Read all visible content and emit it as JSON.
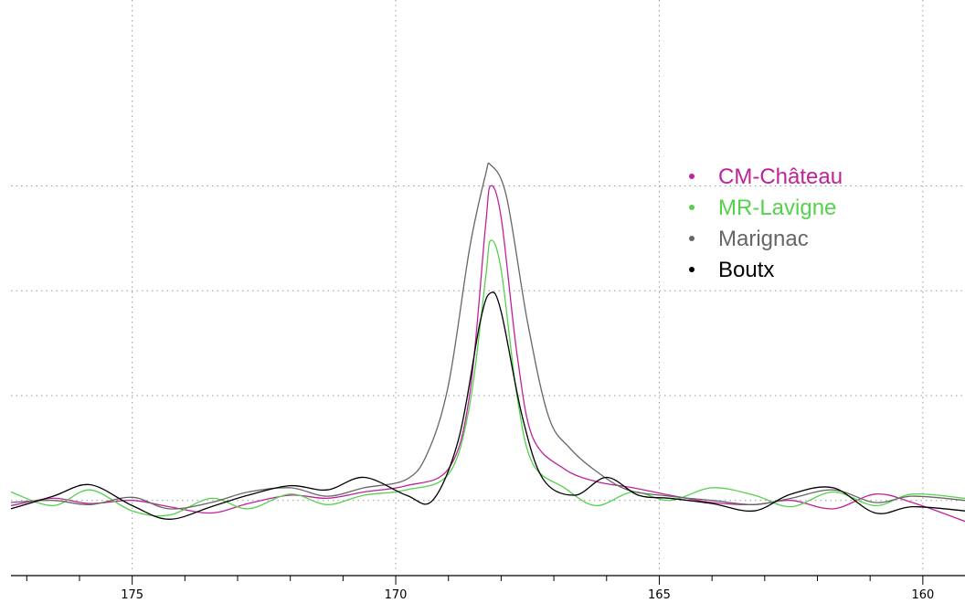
{
  "chart_data": {
    "type": "line",
    "title": "",
    "xlabel": "",
    "ylabel": "",
    "x_reversed": true,
    "xlim": [
      177.3,
      159.2
    ],
    "ylim": [
      -0.7,
      4.6
    ],
    "grid": true,
    "x_ticks": [
      175,
      170,
      165,
      160
    ],
    "x_tick_labels": [
      "175",
      "170",
      "165",
      "160"
    ],
    "y_gridlines": [
      0,
      1,
      2,
      3
    ],
    "legend_position": "upper-right",
    "series": [
      {
        "name": "CM-Château",
        "color": "#c0229a",
        "peak_center": 168.2,
        "peak_height": 3.0,
        "points": [
          [
            177.3,
            -0.05
          ],
          [
            176.5,
            0.02
          ],
          [
            175.8,
            -0.03
          ],
          [
            175.0,
            0.0
          ],
          [
            174.3,
            -0.06
          ],
          [
            173.5,
            -0.12
          ],
          [
            172.8,
            -0.03
          ],
          [
            172.0,
            0.05
          ],
          [
            171.3,
            0.02
          ],
          [
            170.6,
            0.08
          ],
          [
            169.8,
            0.14
          ],
          [
            169.0,
            0.3
          ],
          [
            168.6,
            1.0
          ],
          [
            168.3,
            2.6
          ],
          [
            168.2,
            3.0
          ],
          [
            168.0,
            2.7
          ],
          [
            167.7,
            1.4
          ],
          [
            167.4,
            0.6
          ],
          [
            166.8,
            0.3
          ],
          [
            166.2,
            0.18
          ],
          [
            165.5,
            0.12
          ],
          [
            164.8,
            0.05
          ],
          [
            164.0,
            -0.02
          ],
          [
            163.2,
            -0.04
          ],
          [
            162.5,
            0.0
          ],
          [
            161.7,
            -0.08
          ],
          [
            160.9,
            0.06
          ],
          [
            160.2,
            -0.02
          ],
          [
            159.2,
            -0.2
          ]
        ]
      },
      {
        "name": "MR-Lavigne",
        "color": "#55d24b",
        "peak_center": 168.2,
        "peak_height": 2.48,
        "points": [
          [
            177.3,
            0.08
          ],
          [
            176.5,
            -0.05
          ],
          [
            175.8,
            0.1
          ],
          [
            175.0,
            -0.1
          ],
          [
            174.3,
            -0.14
          ],
          [
            173.5,
            0.02
          ],
          [
            172.8,
            -0.08
          ],
          [
            172.0,
            0.06
          ],
          [
            171.3,
            -0.04
          ],
          [
            170.6,
            0.05
          ],
          [
            169.8,
            0.1
          ],
          [
            169.0,
            0.25
          ],
          [
            168.6,
            0.9
          ],
          [
            168.3,
            2.1
          ],
          [
            168.2,
            2.48
          ],
          [
            168.0,
            2.2
          ],
          [
            167.7,
            1.0
          ],
          [
            167.4,
            0.35
          ],
          [
            166.8,
            0.12
          ],
          [
            166.2,
            -0.05
          ],
          [
            165.5,
            0.08
          ],
          [
            164.8,
            0.0
          ],
          [
            164.0,
            0.12
          ],
          [
            163.2,
            0.05
          ],
          [
            162.5,
            -0.06
          ],
          [
            161.7,
            0.08
          ],
          [
            160.9,
            -0.05
          ],
          [
            160.2,
            0.06
          ],
          [
            159.2,
            0.02
          ]
        ]
      },
      {
        "name": "Marignac",
        "color": "#666666",
        "peak_center": 168.2,
        "peak_height": 3.2,
        "points": [
          [
            177.3,
            -0.02
          ],
          [
            176.5,
            0.0
          ],
          [
            175.8,
            -0.04
          ],
          [
            175.0,
            0.03
          ],
          [
            174.3,
            -0.08
          ],
          [
            173.5,
            -0.02
          ],
          [
            172.8,
            0.08
          ],
          [
            172.0,
            0.12
          ],
          [
            171.3,
            0.04
          ],
          [
            170.6,
            0.12
          ],
          [
            169.8,
            0.2
          ],
          [
            169.4,
            0.45
          ],
          [
            169.0,
            1.1
          ],
          [
            168.6,
            2.4
          ],
          [
            168.3,
            3.1
          ],
          [
            168.2,
            3.2
          ],
          [
            167.9,
            2.9
          ],
          [
            167.5,
            1.7
          ],
          [
            167.1,
            0.8
          ],
          [
            166.7,
            0.5
          ],
          [
            166.2,
            0.28
          ],
          [
            165.6,
            0.1
          ],
          [
            164.8,
            0.04
          ],
          [
            164.0,
            0.0
          ],
          [
            163.2,
            -0.04
          ],
          [
            162.5,
            0.02
          ],
          [
            161.7,
            0.1
          ],
          [
            160.9,
            -0.02
          ],
          [
            160.2,
            0.04
          ],
          [
            159.2,
            0.0
          ]
        ]
      },
      {
        "name": "Boutx",
        "color": "#000000",
        "peak_center": 168.2,
        "peak_height": 1.98,
        "points": [
          [
            177.3,
            -0.08
          ],
          [
            176.5,
            0.04
          ],
          [
            175.8,
            0.15
          ],
          [
            175.0,
            -0.05
          ],
          [
            174.3,
            -0.18
          ],
          [
            173.5,
            -0.06
          ],
          [
            172.8,
            0.05
          ],
          [
            172.0,
            0.14
          ],
          [
            171.3,
            0.1
          ],
          [
            170.6,
            0.22
          ],
          [
            169.8,
            0.05
          ],
          [
            169.3,
            0.0
          ],
          [
            168.8,
            0.6
          ],
          [
            168.4,
            1.7
          ],
          [
            168.2,
            1.98
          ],
          [
            168.0,
            1.8
          ],
          [
            167.6,
            0.8
          ],
          [
            167.2,
            0.2
          ],
          [
            166.6,
            0.05
          ],
          [
            166.0,
            0.22
          ],
          [
            165.4,
            0.05
          ],
          [
            164.8,
            0.02
          ],
          [
            164.0,
            -0.03
          ],
          [
            163.2,
            -0.1
          ],
          [
            162.5,
            0.06
          ],
          [
            161.7,
            0.12
          ],
          [
            160.9,
            -0.12
          ],
          [
            160.2,
            -0.06
          ],
          [
            159.2,
            -0.1
          ]
        ]
      }
    ]
  }
}
